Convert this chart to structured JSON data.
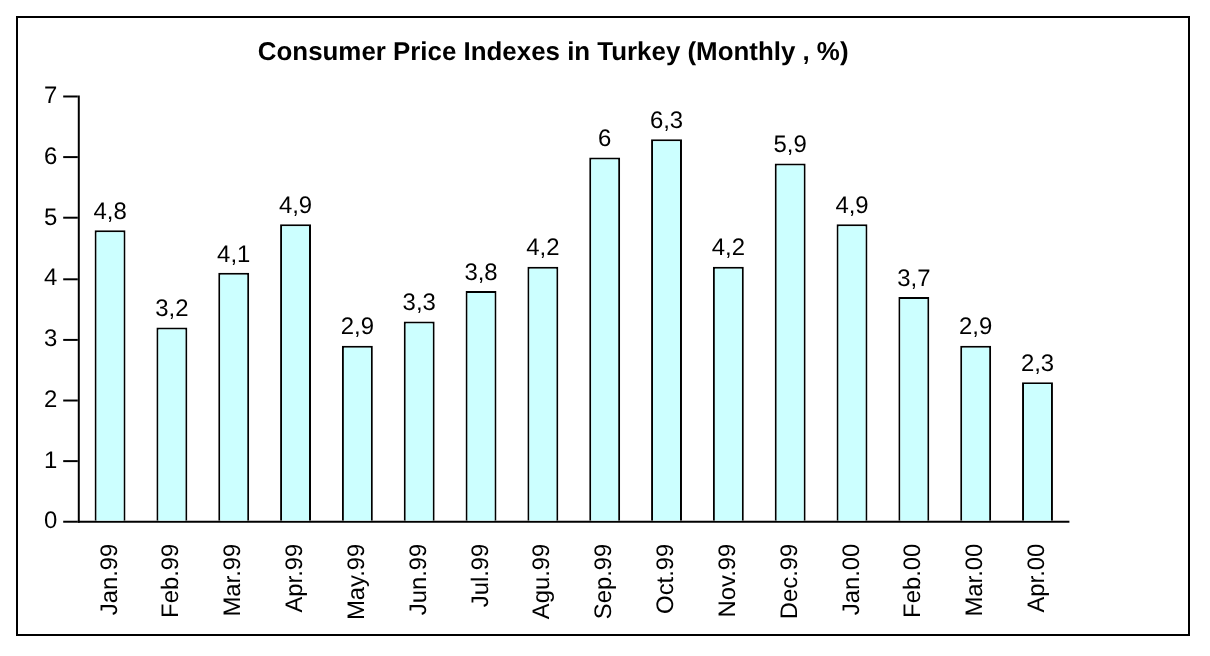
{
  "chart_data": {
    "type": "bar",
    "title": "Consumer Price Indexes in Turkey (Monthly , %)",
    "categories": [
      "Jan.99",
      "Feb.99",
      "Mar.99",
      "Apr.99",
      "May.99",
      "Jun.99",
      "Jul.99",
      "Agu.99",
      "Sep.99",
      "Oct.99",
      "Nov.99",
      "Dec.99",
      "Jan.00",
      "Feb.00",
      "Mar.00",
      "Apr.00"
    ],
    "values": [
      4.8,
      3.2,
      4.1,
      4.9,
      2.9,
      3.3,
      3.8,
      4.2,
      6,
      6.3,
      4.2,
      5.9,
      4.9,
      3.7,
      2.9,
      2.3
    ],
    "value_labels": [
      "4,8",
      "3,2",
      "4,1",
      "4,9",
      "2,9",
      "3,3",
      "3,8",
      "4,2",
      "6",
      "6,3",
      "4,2",
      "5,9",
      "4,9",
      "3,7",
      "2,9",
      "2,3"
    ],
    "color": "#ccffff",
    "ylim": [
      0,
      7
    ],
    "yticks": [
      0,
      1,
      2,
      3,
      4,
      5,
      6,
      7
    ],
    "grid": false,
    "legend": false
  }
}
